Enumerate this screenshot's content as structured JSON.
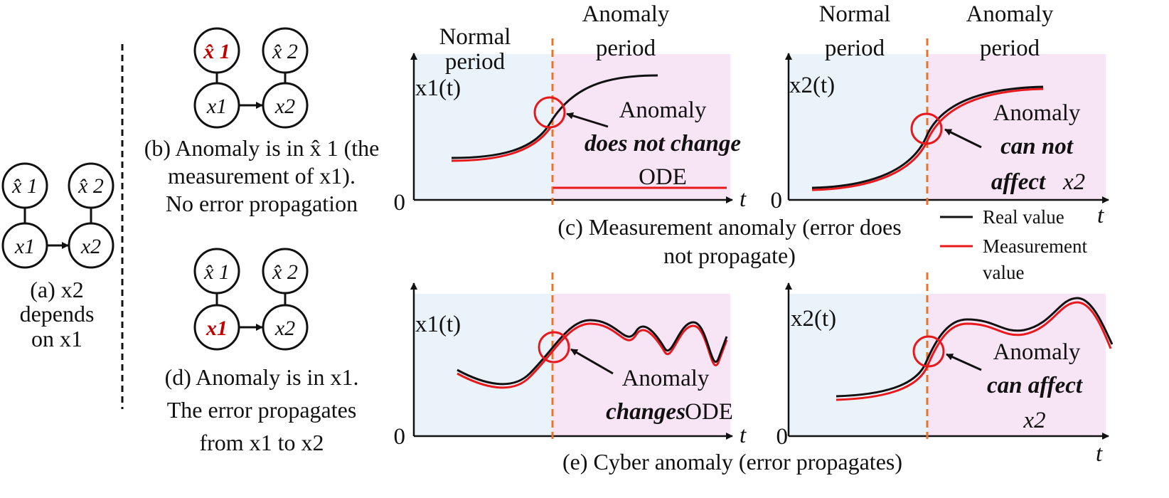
{
  "panel_a": {
    "nodes": {
      "xhat1": "x̂ 1",
      "xhat2": "x̂ 2",
      "x1": "x1",
      "x2": "x2"
    },
    "caption": [
      "(a) x2",
      "depends",
      "on x1"
    ]
  },
  "panel_b": {
    "nodes": {
      "xhat1": "x̂ 1",
      "xhat2": "x̂ 2",
      "x1": "x1",
      "x2": "x2"
    },
    "caption": [
      "(b) Anomaly is in x̂ 1 (the",
      "measurement of x1).",
      "No error propagation"
    ]
  },
  "panel_d": {
    "nodes": {
      "xhat1": "x̂ 1",
      "xhat2": "x̂ 2",
      "x1": "x1",
      "x2": "x2"
    },
    "caption": [
      "(d) Anomaly is in x1.",
      "The error propagates",
      "from x1 to x2"
    ]
  },
  "plots": {
    "c1": {
      "period_normal": [
        "Normal",
        "period"
      ],
      "period_anomaly": [
        "Anomaly",
        "period"
      ],
      "ylabel": "x1(t)",
      "zero": "0",
      "xlabel": "t",
      "ann1": "Anomaly",
      "ann2": "does not change",
      "ann3": "ODE"
    },
    "c2": {
      "period_normal": [
        "Normal",
        "period"
      ],
      "period_anomaly": [
        "Anomaly",
        "period"
      ],
      "ylabel": "x2(t)",
      "zero": "0",
      "xlabel": "t",
      "ann1": "Anomaly",
      "ann2": "can not",
      "ann3a": "affect",
      "ann3b": "x2"
    },
    "e1": {
      "ylabel": "x1(t)",
      "zero": "0",
      "xlabel": "t",
      "ann1": "Anomaly",
      "ann2a": "changes",
      "ann2b": "ODE"
    },
    "e2": {
      "ylabel": "x2(t)",
      "zero": "0",
      "xlabel": "t",
      "ann1": "Anomaly",
      "ann2": "can affect",
      "ann3": "x2"
    }
  },
  "caption_c": [
    "(c) Measurement anomaly (error does",
    "not propagate)"
  ],
  "caption_e": "(e) Cyber anomaly (error propagates)",
  "legend": {
    "real": "Real value",
    "measurement_1": "Measurement",
    "measurement_2": "value"
  },
  "colors": {
    "normal_bg": "#eaf2fa",
    "anomaly_bg": "#f7e4f5",
    "real": "#111111",
    "measurement": "#e8191d",
    "divider": "#e8732b",
    "highlight": "#c00000"
  }
}
